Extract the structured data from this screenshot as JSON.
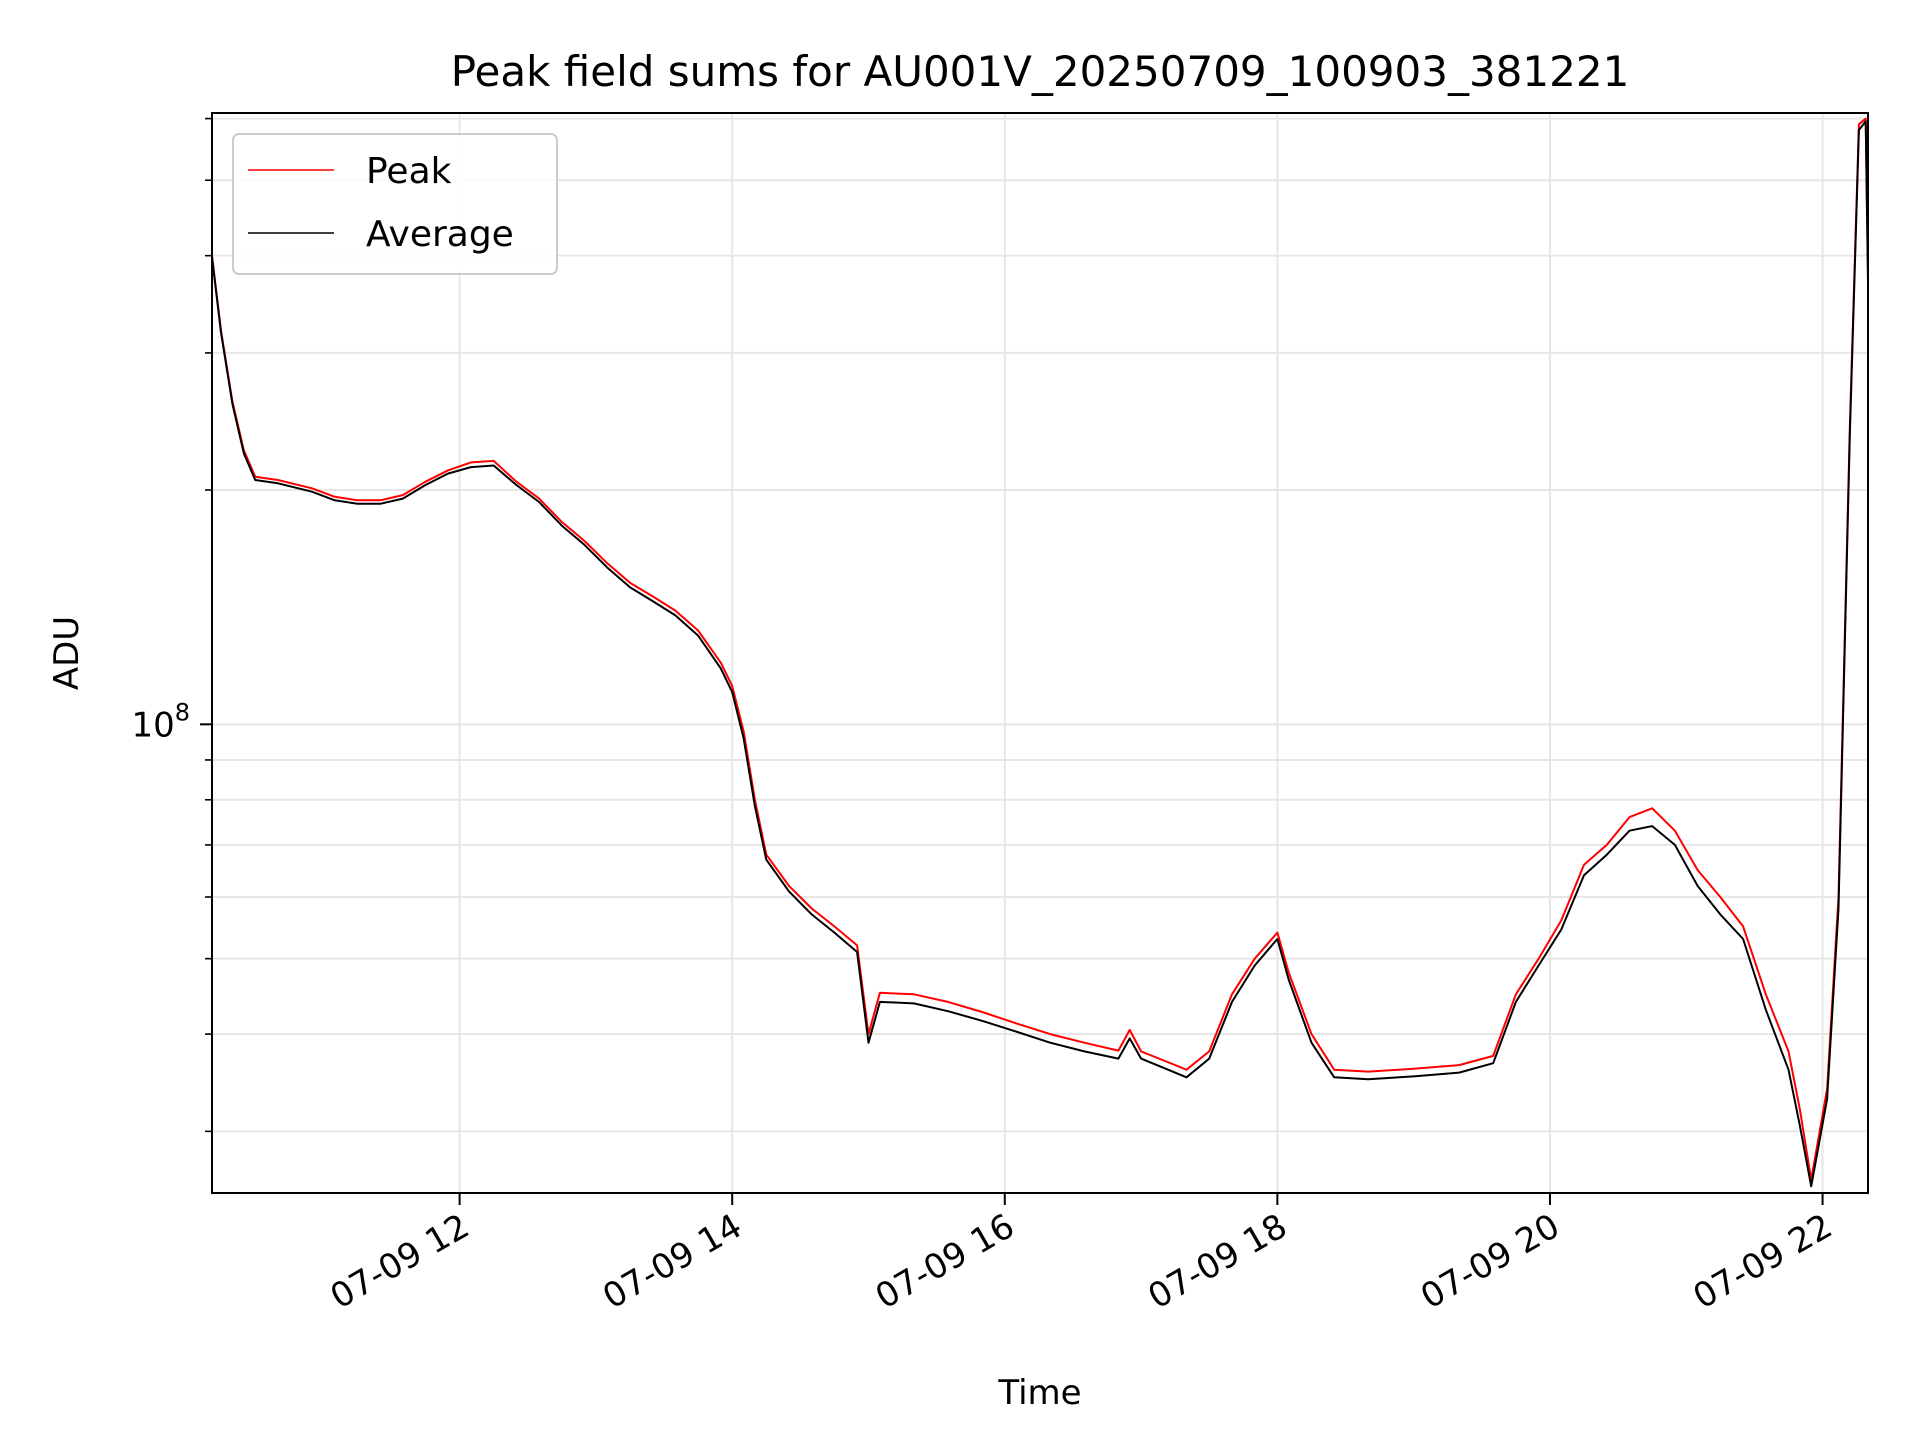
{
  "chart_data": {
    "type": "line",
    "title": "Peak field sums for AU001V_20250709_100903_381221",
    "xlabel": "Time",
    "ylabel": "ADU",
    "yscale": "log",
    "ylim": [
      25000000.0,
      610000000.0
    ],
    "xlim": [
      "2025-07-09 10:11",
      "2025-07-09 22:20"
    ],
    "x_ticks": [
      "07-09 12",
      "07-09 14",
      "07-09 16",
      "07-09 18",
      "07-09 20",
      "07-09 22"
    ],
    "y_ticks": [
      "10^8"
    ],
    "grid": true,
    "legend_position": "upper-left",
    "series": [
      {
        "name": "Peak",
        "color": "#ff0000",
        "points": [
          [
            "2025-07-09 10:11",
            400000000
          ],
          [
            "2025-07-09 10:15",
            320000000
          ],
          [
            "2025-07-09 10:20",
            260000000
          ],
          [
            "2025-07-09 10:25",
            225000000
          ],
          [
            "2025-07-09 10:30",
            208000000
          ],
          [
            "2025-07-09 10:40",
            206000000
          ],
          [
            "2025-07-09 10:55",
            201000000
          ],
          [
            "2025-07-09 11:05",
            196000000
          ],
          [
            "2025-07-09 11:15",
            194000000
          ],
          [
            "2025-07-09 11:25",
            194000000
          ],
          [
            "2025-07-09 11:35",
            197000000
          ],
          [
            "2025-07-09 11:45",
            205000000
          ],
          [
            "2025-07-09 11:55",
            212000000
          ],
          [
            "2025-07-09 12:05",
            217000000
          ],
          [
            "2025-07-09 12:15",
            218000000
          ],
          [
            "2025-07-09 12:25",
            205000000
          ],
          [
            "2025-07-09 12:35",
            195000000
          ],
          [
            "2025-07-09 12:45",
            182000000
          ],
          [
            "2025-07-09 12:55",
            172000000
          ],
          [
            "2025-07-09 13:05",
            161000000
          ],
          [
            "2025-07-09 13:15",
            152000000
          ],
          [
            "2025-07-09 13:25",
            146000000
          ],
          [
            "2025-07-09 13:35",
            140000000
          ],
          [
            "2025-07-09 13:45",
            132000000
          ],
          [
            "2025-07-09 13:55",
            120000000
          ],
          [
            "2025-07-09 14:00",
            112000000
          ],
          [
            "2025-07-09 14:05",
            98000000
          ],
          [
            "2025-07-09 14:10",
            80000000
          ],
          [
            "2025-07-09 14:15",
            68000000
          ],
          [
            "2025-07-09 14:25",
            62000000
          ],
          [
            "2025-07-09 14:35",
            58000000
          ],
          [
            "2025-07-09 14:45",
            55000000
          ],
          [
            "2025-07-09 14:55",
            52000000
          ],
          [
            "2025-07-09 15:00",
            40000000
          ],
          [
            "2025-07-09 15:05",
            45200000
          ],
          [
            "2025-07-09 15:20",
            45000000
          ],
          [
            "2025-07-09 15:35",
            44000000
          ],
          [
            "2025-07-09 15:50",
            42700000
          ],
          [
            "2025-07-09 16:05",
            41300000
          ],
          [
            "2025-07-09 16:20",
            40000000
          ],
          [
            "2025-07-09 16:35",
            39000000
          ],
          [
            "2025-07-09 16:50",
            38100000
          ],
          [
            "2025-07-09 16:55",
            40500000
          ],
          [
            "2025-07-09 17:00",
            38000000
          ],
          [
            "2025-07-09 17:10",
            37000000
          ],
          [
            "2025-07-09 17:20",
            36000000
          ],
          [
            "2025-07-09 17:30",
            38000000
          ],
          [
            "2025-07-09 17:40",
            45000000
          ],
          [
            "2025-07-09 17:50",
            50000000
          ],
          [
            "2025-07-09 18:00",
            54000000
          ],
          [
            "2025-07-09 18:05",
            48000000
          ],
          [
            "2025-07-09 18:15",
            40000000
          ],
          [
            "2025-07-09 18:25",
            36000000
          ],
          [
            "2025-07-09 18:40",
            35800000
          ],
          [
            "2025-07-09 19:00",
            36100000
          ],
          [
            "2025-07-09 19:20",
            36500000
          ],
          [
            "2025-07-09 19:35",
            37500000
          ],
          [
            "2025-07-09 19:45",
            45000000
          ],
          [
            "2025-07-09 19:55",
            50000000
          ],
          [
            "2025-07-09 20:05",
            56000000
          ],
          [
            "2025-07-09 20:15",
            66000000
          ],
          [
            "2025-07-09 20:25",
            70000000
          ],
          [
            "2025-07-09 20:35",
            76000000
          ],
          [
            "2025-07-09 20:45",
            78000000
          ],
          [
            "2025-07-09 20:55",
            73000000
          ],
          [
            "2025-07-09 21:05",
            65000000
          ],
          [
            "2025-07-09 21:15",
            60000000
          ],
          [
            "2025-07-09 21:25",
            55000000
          ],
          [
            "2025-07-09 21:35",
            45000000
          ],
          [
            "2025-07-09 21:45",
            38000000
          ],
          [
            "2025-07-09 21:50",
            32000000
          ],
          [
            "2025-07-09 21:55",
            26000000
          ],
          [
            "2025-07-09 22:02",
            34000000
          ],
          [
            "2025-07-09 22:07",
            60000000
          ],
          [
            "2025-07-09 22:12",
            240000000
          ],
          [
            "2025-07-09 22:16",
            590000000
          ],
          [
            "2025-07-09 22:19",
            600000000
          ],
          [
            "2025-07-09 22:20",
            380000000
          ]
        ]
      },
      {
        "name": "Average",
        "color": "#000000",
        "points": [
          [
            "2025-07-09 10:11",
            398000000
          ],
          [
            "2025-07-09 10:15",
            318000000
          ],
          [
            "2025-07-09 10:20",
            258000000
          ],
          [
            "2025-07-09 10:25",
            223000000
          ],
          [
            "2025-07-09 10:30",
            206000000
          ],
          [
            "2025-07-09 10:40",
            204000000
          ],
          [
            "2025-07-09 10:55",
            199000000
          ],
          [
            "2025-07-09 11:05",
            194000000
          ],
          [
            "2025-07-09 11:15",
            192000000
          ],
          [
            "2025-07-09 11:25",
            192000000
          ],
          [
            "2025-07-09 11:35",
            195000000
          ],
          [
            "2025-07-09 11:45",
            203000000
          ],
          [
            "2025-07-09 11:55",
            210000000
          ],
          [
            "2025-07-09 12:05",
            214000000
          ],
          [
            "2025-07-09 12:15",
            215000000
          ],
          [
            "2025-07-09 12:25",
            203000000
          ],
          [
            "2025-07-09 12:35",
            193000000
          ],
          [
            "2025-07-09 12:45",
            180000000
          ],
          [
            "2025-07-09 12:55",
            170000000
          ],
          [
            "2025-07-09 13:05",
            159000000
          ],
          [
            "2025-07-09 13:15",
            150000000
          ],
          [
            "2025-07-09 13:25",
            144000000
          ],
          [
            "2025-07-09 13:35",
            138000000
          ],
          [
            "2025-07-09 13:45",
            130000000
          ],
          [
            "2025-07-09 13:55",
            118000000
          ],
          [
            "2025-07-09 14:00",
            110000000
          ],
          [
            "2025-07-09 14:05",
            96000000
          ],
          [
            "2025-07-09 14:10",
            78500000
          ],
          [
            "2025-07-09 14:15",
            67000000
          ],
          [
            "2025-07-09 14:25",
            61000000
          ],
          [
            "2025-07-09 14:35",
            57000000
          ],
          [
            "2025-07-09 14:45",
            54000000
          ],
          [
            "2025-07-09 14:55",
            51000000
          ],
          [
            "2025-07-09 15:00",
            39000000
          ],
          [
            "2025-07-09 15:05",
            44000000
          ],
          [
            "2025-07-09 15:20",
            43800000
          ],
          [
            "2025-07-09 15:35",
            42800000
          ],
          [
            "2025-07-09 15:50",
            41600000
          ],
          [
            "2025-07-09 16:05",
            40300000
          ],
          [
            "2025-07-09 16:20",
            39000000
          ],
          [
            "2025-07-09 16:35",
            38000000
          ],
          [
            "2025-07-09 16:50",
            37200000
          ],
          [
            "2025-07-09 16:55",
            39500000
          ],
          [
            "2025-07-09 17:00",
            37200000
          ],
          [
            "2025-07-09 17:10",
            36200000
          ],
          [
            "2025-07-09 17:20",
            35200000
          ],
          [
            "2025-07-09 17:30",
            37200000
          ],
          [
            "2025-07-09 17:40",
            44000000
          ],
          [
            "2025-07-09 17:50",
            49000000
          ],
          [
            "2025-07-09 18:00",
            53000000
          ],
          [
            "2025-07-09 18:05",
            47000000
          ],
          [
            "2025-07-09 18:15",
            39000000
          ],
          [
            "2025-07-09 18:25",
            35200000
          ],
          [
            "2025-07-09 18:40",
            35000000
          ],
          [
            "2025-07-09 19:00",
            35300000
          ],
          [
            "2025-07-09 19:20",
            35700000
          ],
          [
            "2025-07-09 19:35",
            36700000
          ],
          [
            "2025-07-09 19:45",
            44000000
          ],
          [
            "2025-07-09 19:55",
            49000000
          ],
          [
            "2025-07-09 20:05",
            54500000
          ],
          [
            "2025-07-09 20:15",
            64000000
          ],
          [
            "2025-07-09 20:25",
            68000000
          ],
          [
            "2025-07-09 20:35",
            73000000
          ],
          [
            "2025-07-09 20:45",
            74000000
          ],
          [
            "2025-07-09 20:55",
            70000000
          ],
          [
            "2025-07-09 21:05",
            62000000
          ],
          [
            "2025-07-09 21:15",
            57000000
          ],
          [
            "2025-07-09 21:25",
            53000000
          ],
          [
            "2025-07-09 21:35",
            43000000
          ],
          [
            "2025-07-09 21:45",
            36000000
          ],
          [
            "2025-07-09 21:50",
            30500000
          ],
          [
            "2025-07-09 21:55",
            25500000
          ],
          [
            "2025-07-09 22:02",
            33000000
          ],
          [
            "2025-07-09 22:07",
            58000000
          ],
          [
            "2025-07-09 22:12",
            235000000
          ],
          [
            "2025-07-09 22:16",
            580000000
          ],
          [
            "2025-07-09 22:19",
            595000000
          ],
          [
            "2025-07-09 22:20",
            370000000
          ]
        ]
      }
    ]
  }
}
